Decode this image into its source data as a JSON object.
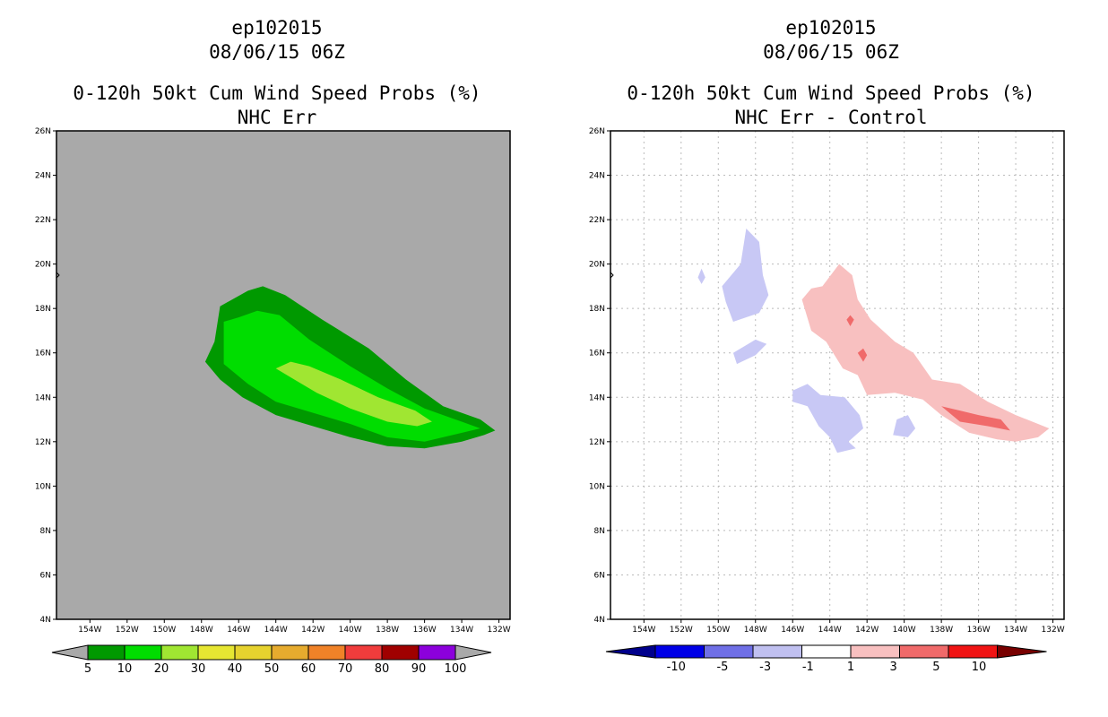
{
  "chart_data": [
    {
      "type": "heatmap",
      "title_lines": [
        "ep102015",
        "08/06/15 06Z",
        "0-120h 50kt Cum Wind Speed Probs (%)",
        "NHC Err"
      ],
      "lat_ticks": [
        "4N",
        "6N",
        "8N",
        "10N",
        "12N",
        "14N",
        "16N",
        "18N",
        "20N",
        "22N",
        "24N",
        "26N"
      ],
      "lon_ticks": [
        "154W",
        "152W",
        "150W",
        "148W",
        "146W",
        "144W",
        "142W",
        "140W",
        "138W",
        "136W",
        "134W",
        "132W"
      ],
      "lat_range": [
        4,
        26
      ],
      "lon_range": [
        -155.8,
        -131.4
      ],
      "grid": false,
      "background_color": "#a9a9a9",
      "colorbar": {
        "labels": [
          "5",
          "10",
          "20",
          "30",
          "40",
          "50",
          "60",
          "70",
          "80",
          "90",
          "100"
        ],
        "colors": [
          "#009900",
          "#00dd00",
          "#a0e632",
          "#e6e632",
          "#e6d22e",
          "#e6ab2e",
          "#f08228",
          "#f03c3c",
          "#a00000",
          "#8c00dc"
        ]
      },
      "contours": [
        {
          "level": "5-10",
          "color": "#009900",
          "path": [
            [
              -147.8,
              15.6
            ],
            [
              -147.3,
              16.5
            ],
            [
              -147.0,
              18.1
            ],
            [
              -145.5,
              18.8
            ],
            [
              -144.7,
              19.0
            ],
            [
              -143.5,
              18.6
            ],
            [
              -141.5,
              17.5
            ],
            [
              -139.0,
              16.2
            ],
            [
              -137.0,
              14.8
            ],
            [
              -135.0,
              13.6
            ],
            [
              -133.0,
              13.0
            ],
            [
              -132.2,
              12.5
            ],
            [
              -132.8,
              12.3
            ],
            [
              -134.0,
              12.0
            ],
            [
              -136.0,
              11.7
            ],
            [
              -138.0,
              11.8
            ],
            [
              -140.0,
              12.2
            ],
            [
              -142.0,
              12.7
            ],
            [
              -144.0,
              13.2
            ],
            [
              -145.8,
              14.0
            ],
            [
              -147.0,
              14.8
            ],
            [
              -147.8,
              15.6
            ]
          ]
        },
        {
          "level": "10-20",
          "color": "#00dd00",
          "path": [
            [
              -146.8,
              15.5
            ],
            [
              -146.8,
              17.4
            ],
            [
              -146.0,
              17.6
            ],
            [
              -145.0,
              17.9
            ],
            [
              -143.8,
              17.7
            ],
            [
              -142.2,
              16.6
            ],
            [
              -140.0,
              15.4
            ],
            [
              -138.0,
              14.4
            ],
            [
              -136.0,
              13.5
            ],
            [
              -134.0,
              12.9
            ],
            [
              -133.0,
              12.6
            ],
            [
              -134.5,
              12.3
            ],
            [
              -136.0,
              12.0
            ],
            [
              -138.0,
              12.2
            ],
            [
              -140.0,
              12.8
            ],
            [
              -142.0,
              13.3
            ],
            [
              -144.0,
              13.8
            ],
            [
              -145.5,
              14.6
            ],
            [
              -146.8,
              15.5
            ]
          ]
        },
        {
          "level": "20-30",
          "color": "#a0e632",
          "path": [
            [
              -144.0,
              15.3
            ],
            [
              -143.2,
              15.6
            ],
            [
              -142.2,
              15.4
            ],
            [
              -140.5,
              14.8
            ],
            [
              -138.5,
              14.0
            ],
            [
              -136.5,
              13.4
            ],
            [
              -135.6,
              12.9
            ],
            [
              -136.4,
              12.7
            ],
            [
              -138.0,
              12.9
            ],
            [
              -140.0,
              13.5
            ],
            [
              -141.8,
              14.2
            ],
            [
              -143.0,
              14.8
            ],
            [
              -144.0,
              15.3
            ]
          ]
        }
      ]
    },
    {
      "type": "heatmap",
      "title_lines": [
        "ep102015",
        "08/06/15 06Z",
        "0-120h 50kt Cum Wind Speed Probs (%)",
        "NHC Err - Control"
      ],
      "lat_ticks": [
        "4N",
        "6N",
        "8N",
        "10N",
        "12N",
        "14N",
        "16N",
        "18N",
        "20N",
        "22N",
        "24N",
        "26N"
      ],
      "lon_ticks": [
        "154W",
        "152W",
        "150W",
        "148W",
        "146W",
        "144W",
        "142W",
        "140W",
        "138W",
        "136W",
        "134W",
        "132W"
      ],
      "lat_range": [
        4,
        26
      ],
      "lon_range": [
        -155.8,
        -131.4
      ],
      "grid": true,
      "background_color": "#ffffff",
      "colorbar": {
        "labels": [
          "-10",
          "-5",
          "-3",
          "-1",
          "1",
          "3",
          "5",
          "10"
        ],
        "colors": [
          "#0000e6",
          "#6f6fe6",
          "#c0c0f0",
          "#ffffff",
          "#f8c0c0",
          "#f06a6a",
          "#f01414"
        ],
        "end_colors": [
          "#00008c",
          "#780000"
        ]
      },
      "contours": [
        {
          "level": "-3 to -1",
          "color": "#c8c8f5",
          "path": [
            [
              -149.8,
              19.0
            ],
            [
              -148.8,
              20.0
            ],
            [
              -148.5,
              21.6
            ],
            [
              -147.8,
              21.0
            ],
            [
              -147.6,
              19.5
            ],
            [
              -147.3,
              18.6
            ],
            [
              -147.8,
              17.8
            ],
            [
              -149.2,
              17.4
            ],
            [
              -149.6,
              18.3
            ],
            [
              -149.8,
              19.0
            ]
          ]
        },
        {
          "level": "-3 to -1",
          "color": "#c8c8f5",
          "path": [
            [
              -151.1,
              19.4
            ],
            [
              -150.9,
              19.8
            ],
            [
              -150.7,
              19.4
            ],
            [
              -150.9,
              19.1
            ],
            [
              -151.1,
              19.4
            ]
          ]
        },
        {
          "level": "-3 to -1",
          "color": "#c8c8f5",
          "path": [
            [
              -149.2,
              16.0
            ],
            [
              -148.0,
              16.6
            ],
            [
              -147.4,
              16.4
            ],
            [
              -148.0,
              15.9
            ],
            [
              -149.0,
              15.5
            ],
            [
              -149.2,
              16.0
            ]
          ]
        },
        {
          "level": "-3 to -1",
          "color": "#c8c8f5",
          "path": [
            [
              -146.0,
              14.3
            ],
            [
              -145.2,
              14.6
            ],
            [
              -144.5,
              14.1
            ],
            [
              -143.2,
              14.0
            ],
            [
              -142.4,
              13.2
            ],
            [
              -142.2,
              12.6
            ],
            [
              -143.0,
              12.0
            ],
            [
              -142.6,
              11.7
            ],
            [
              -143.6,
              11.5
            ],
            [
              -144.0,
              12.2
            ],
            [
              -144.6,
              12.7
            ],
            [
              -145.2,
              13.6
            ],
            [
              -146.0,
              13.8
            ],
            [
              -146.0,
              14.3
            ]
          ]
        },
        {
          "level": "-3 to -1",
          "color": "#c8c8f5",
          "path": [
            [
              -140.4,
              13.0
            ],
            [
              -139.8,
              13.2
            ],
            [
              -139.4,
              12.6
            ],
            [
              -139.8,
              12.2
            ],
            [
              -140.6,
              12.3
            ],
            [
              -140.4,
              13.0
            ]
          ]
        },
        {
          "level": "1 to 3",
          "color": "#f8c0c0",
          "path": [
            [
              -145.5,
              18.4
            ],
            [
              -145.0,
              18.9
            ],
            [
              -144.4,
              19.0
            ],
            [
              -143.5,
              20.0
            ],
            [
              -142.8,
              19.5
            ],
            [
              -142.5,
              18.4
            ],
            [
              -141.8,
              17.5
            ],
            [
              -140.5,
              16.5
            ],
            [
              -139.5,
              16.0
            ],
            [
              -138.5,
              14.8
            ],
            [
              -137.0,
              14.6
            ],
            [
              -135.5,
              13.8
            ],
            [
              -134.0,
              13.2
            ],
            [
              -132.2,
              12.6
            ],
            [
              -132.8,
              12.2
            ],
            [
              -134.0,
              12.0
            ],
            [
              -135.0,
              12.1
            ],
            [
              -136.5,
              12.4
            ],
            [
              -138.0,
              13.2
            ],
            [
              -139.0,
              13.9
            ],
            [
              -140.5,
              14.2
            ],
            [
              -142.0,
              14.1
            ],
            [
              -142.5,
              15.0
            ],
            [
              -143.3,
              15.3
            ],
            [
              -144.2,
              16.5
            ],
            [
              -145.0,
              17.0
            ],
            [
              -145.5,
              18.4
            ]
          ]
        },
        {
          "level": "3 to 5",
          "color": "#f06a6a",
          "path": [
            [
              -138.0,
              13.6
            ],
            [
              -137.0,
              13.4
            ],
            [
              -136.0,
              13.2
            ],
            [
              -134.8,
              13.0
            ],
            [
              -134.3,
              12.5
            ],
            [
              -135.5,
              12.7
            ],
            [
              -137.0,
              12.9
            ],
            [
              -138.0,
              13.6
            ]
          ]
        },
        {
          "level": "3 to 5",
          "color": "#f06a6a",
          "path": [
            [
              -142.5,
              16.0
            ],
            [
              -142.2,
              16.2
            ],
            [
              -142.0,
              15.9
            ],
            [
              -142.2,
              15.6
            ],
            [
              -142.5,
              16.0
            ]
          ]
        },
        {
          "level": "3 to 5",
          "color": "#f06a6a",
          "path": [
            [
              -143.1,
              17.5
            ],
            [
              -142.9,
              17.7
            ],
            [
              -142.7,
              17.5
            ],
            [
              -142.9,
              17.2
            ],
            [
              -143.1,
              17.5
            ]
          ]
        }
      ]
    }
  ]
}
